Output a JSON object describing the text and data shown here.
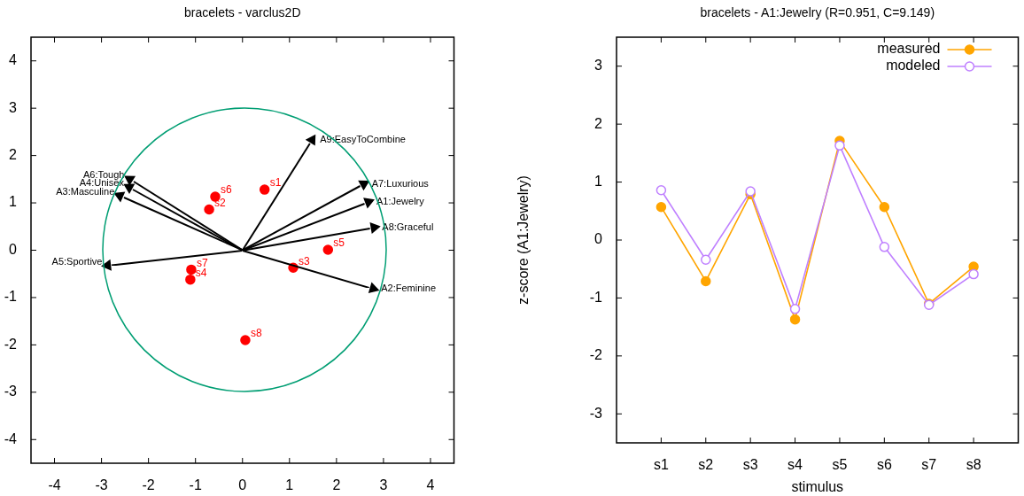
{
  "chart_data": [
    {
      "type": "scatter",
      "title": "bracelets - varclus2D",
      "xlim": [
        -4.5,
        4.5
      ],
      "ylim": [
        -4.5,
        4.5
      ],
      "xticks": [
        -4,
        -3,
        -2,
        -1,
        0,
        1,
        2,
        3,
        4
      ],
      "yticks": [
        -4,
        -3,
        -2,
        -1,
        0,
        1,
        2,
        3,
        4
      ],
      "grid": false,
      "series": [
        {
          "type": "scatter",
          "color": "#000000",
          "marker": "triangle",
          "x": [
            2.68,
            2.78,
            -2.61,
            -2.41,
            -2.87,
            -2.4,
            2.58,
            2.8,
            1.48
          ],
          "values": [
            1.02,
            -0.81,
            1.15,
            1.33,
            -0.32,
            1.5,
            1.4,
            0.48,
            2.33
          ]
        },
        {
          "type": "scatter",
          "color": "#ff0000",
          "marker": "circle",
          "x": [
            0.47,
            -0.71,
            1.08,
            -1.11,
            1.82,
            -0.58,
            -1.09,
            0.06
          ],
          "values": [
            1.28,
            0.86,
            -0.37,
            -0.62,
            0.01,
            1.13,
            -0.41,
            -1.9
          ],
          "value_labels": [
            "s1",
            "s2",
            "s3",
            "s4",
            "s5",
            "s6",
            "s7",
            "s8"
          ]
        }
      ],
      "annotations": [
        {
          "text": "A1:Jewelry",
          "x": 2.68,
          "y": 1.02
        },
        {
          "text": "A2:Feminine",
          "x": 2.78,
          "y": -0.81
        },
        {
          "text": "A3:Masculine",
          "x": -2.61,
          "y": 1.15
        },
        {
          "text": "A4:Unisex",
          "x": -2.41,
          "y": 1.33
        },
        {
          "text": "A5:Sportive",
          "x": -2.87,
          "y": -0.32
        },
        {
          "text": "A6:Tough",
          "x": -2.4,
          "y": 1.5
        },
        {
          "text": "A7:Luxurious",
          "x": 2.58,
          "y": 1.4
        },
        {
          "text": "A8:Graceful",
          "x": 2.8,
          "y": 0.48
        },
        {
          "text": "A9:EasyToCombine",
          "x": 1.48,
          "y": 2.33
        }
      ]
    },
    {
      "type": "line",
      "title": "bracelets - A1:Jewelry (R=0.951, C=9.149)",
      "xlabel": "stimulus",
      "ylabel": "z-score (A1:Jewelry)",
      "categories": [
        "s1",
        "s2",
        "s3",
        "s4",
        "s5",
        "s6",
        "s7",
        "s8"
      ],
      "ylim": [
        -3.5,
        3.5
      ],
      "yticks": [
        -3,
        -2,
        -1,
        0,
        1,
        2,
        3
      ],
      "grid": false,
      "legend": "top right",
      "marker": "circle",
      "series": [
        {
          "name": "measured",
          "color": "#ffa500",
          "values": [
            0.57,
            -0.71,
            0.79,
            -1.37,
            1.71,
            0.57,
            -1.1,
            -0.46
          ]
        },
        {
          "name": "modeled",
          "color": "#bf80ff",
          "values": [
            0.86,
            -0.34,
            0.84,
            -1.19,
            1.63,
            -0.12,
            -1.12,
            -0.59
          ]
        }
      ]
    }
  ]
}
